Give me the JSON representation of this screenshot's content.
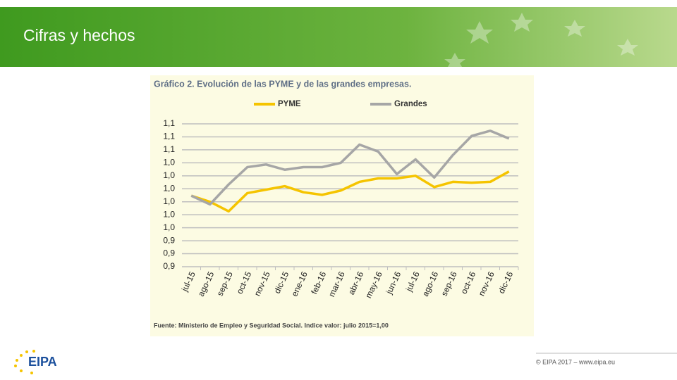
{
  "header": {
    "title": "Cifras y hechos"
  },
  "chart_data": {
    "type": "line",
    "title": "Gráfico 2. Evolución de las PYME y de las grandes empresas.",
    "source": "Fuente: Ministerio de  Empleo y Seguridad Social. Indice valor: julio 2015=1,00",
    "categories": [
      "jul-15",
      "ago-15",
      "sep-15",
      "oct-15",
      "nov-15",
      "dic-15",
      "ene-16",
      "feb-16",
      "mar-16",
      "abr-16",
      "may-16",
      "jun-16",
      "jul-16",
      "ago-16",
      "sep-16",
      "oct-16",
      "nov-16",
      "dic-16"
    ],
    "series": [
      {
        "name": "PYME",
        "color": "#f5c400",
        "values": [
          0.997,
          0.99,
          0.979,
          1.0,
          1.004,
          1.008,
          1.001,
          0.998,
          1.003,
          1.013,
          1.017,
          1.017,
          1.02,
          1.007,
          1.013,
          1.012,
          1.013,
          1.025
        ]
      },
      {
        "name": "Grandes",
        "color": "#a6a6a6",
        "values": [
          0.997,
          0.987,
          1.01,
          1.03,
          1.033,
          1.027,
          1.03,
          1.03,
          1.035,
          1.056,
          1.048,
          1.022,
          1.039,
          1.018,
          1.044,
          1.066,
          1.072,
          1.063
        ]
      }
    ],
    "ylim": [
      0.915,
      1.08
    ],
    "yticks": [
      {
        "value": 0.915,
        "label": "0,9"
      },
      {
        "value": 0.93,
        "label": "0,9"
      },
      {
        "value": 0.945,
        "label": "0,9"
      },
      {
        "value": 0.96,
        "label": "1,0"
      },
      {
        "value": 0.975,
        "label": "1,0"
      },
      {
        "value": 0.99,
        "label": "1,0"
      },
      {
        "value": 1.005,
        "label": "1,0"
      },
      {
        "value": 1.02,
        "label": "1,0"
      },
      {
        "value": 1.035,
        "label": "1,0"
      },
      {
        "value": 1.05,
        "label": "1,1"
      },
      {
        "value": 1.065,
        "label": "1,1"
      },
      {
        "value": 1.08,
        "label": "1,1"
      }
    ],
    "grid": true,
    "legend": "top"
  },
  "footer": {
    "logo": "EIPA",
    "copyright": "© EIPA 2017 – www.eipa.eu"
  }
}
